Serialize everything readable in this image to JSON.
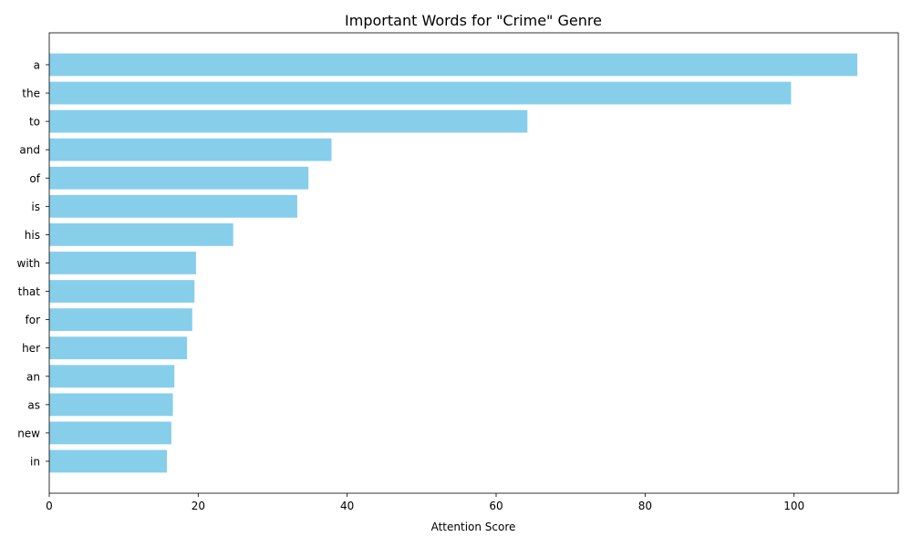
{
  "chart_data": {
    "type": "bar",
    "orientation": "horizontal",
    "title": "Important Words for \"Crime\" Genre",
    "xlabel": "Attention Score",
    "ylabel": "",
    "categories": [
      "a",
      "the",
      "to",
      "and",
      "of",
      "is",
      "his",
      "with",
      "that",
      "for",
      "her",
      "an",
      "as",
      "new",
      "in"
    ],
    "values": [
      108.5,
      99.6,
      64.2,
      37.9,
      34.8,
      33.3,
      24.7,
      19.7,
      19.5,
      19.2,
      18.5,
      16.8,
      16.6,
      16.4,
      15.8
    ],
    "xlim": [
      0,
      114
    ],
    "xticks": [
      0,
      20,
      40,
      60,
      80,
      100
    ],
    "bar_color": "#87ceeb",
    "grid": false,
    "legend": "none"
  }
}
